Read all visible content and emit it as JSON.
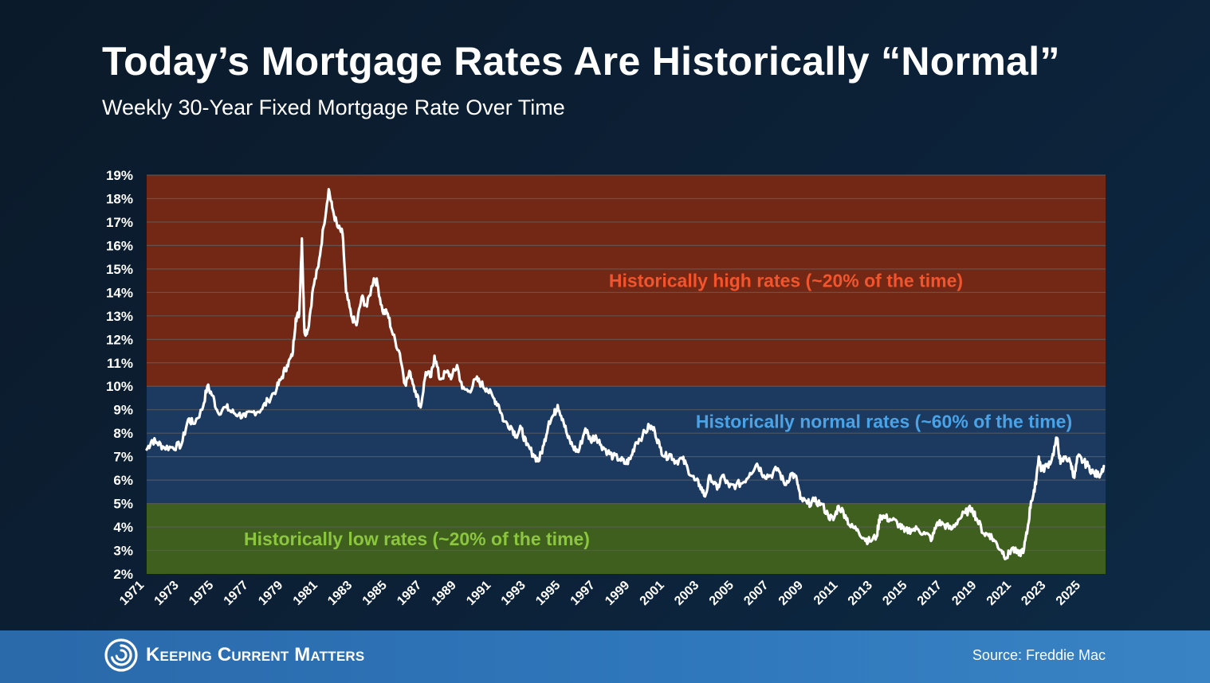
{
  "header": {
    "title": "Today’s Mortgage Rates Are Historically “Normal”",
    "subtitle": "Weekly 30-Year Fixed Mortgage Rate Over Time"
  },
  "footer": {
    "logo_text": "Keeping Current Matters",
    "logo_icon": "spiral-logo-icon",
    "source": "Source: Freddie Mac"
  },
  "chart_data": {
    "type": "line",
    "title": "Today’s Mortgage Rates Are Historically “Normal”",
    "subtitle": "Weekly 30-Year Fixed Mortgage Rate Over Time",
    "xlabel": "",
    "ylabel": "",
    "xlim": [
      1971.3,
      2026.6
    ],
    "ylim": [
      2,
      19
    ],
    "y_ticks": [
      "2%",
      "3%",
      "4%",
      "5%",
      "6%",
      "7%",
      "8%",
      "9%",
      "10%",
      "11%",
      "12%",
      "13%",
      "14%",
      "15%",
      "16%",
      "17%",
      "18%",
      "19%"
    ],
    "x_ticks": [
      "1971",
      "1973",
      "1975",
      "1977",
      "1979",
      "1981",
      "1983",
      "1985",
      "1987",
      "1989",
      "1991",
      "1993",
      "1995",
      "1997",
      "1999",
      "2001",
      "2003",
      "2005",
      "2007",
      "2009",
      "2011",
      "2013",
      "2015",
      "2017",
      "2019",
      "2021",
      "2023",
      "2025"
    ],
    "grid": true,
    "legend": "none",
    "bands": [
      {
        "label": "Historically high rates (~20% of the time)",
        "from": 10,
        "to": 19,
        "color": "#722814",
        "label_color": "#f2542d"
      },
      {
        "label": "Historically normal rates (~60% of the time)",
        "from": 5,
        "to": 10,
        "color": "#1c3a60",
        "label_color": "#4aa3e6"
      },
      {
        "label": "Historically low rates (~20% of the time)",
        "from": 2,
        "to": 5,
        "color": "#3e5f1e",
        "label_color": "#8cc63f"
      }
    ],
    "series": [
      {
        "line_color": "#ffffff",
        "points": [
          [
            1971.3,
            7.3
          ],
          [
            1971.6,
            7.7
          ],
          [
            1971.9,
            7.6
          ],
          [
            1972.3,
            7.4
          ],
          [
            1972.8,
            7.4
          ],
          [
            1973.3,
            7.5
          ],
          [
            1973.7,
            8.6
          ],
          [
            1974.0,
            8.4
          ],
          [
            1974.5,
            9.0
          ],
          [
            1974.8,
            10.0
          ],
          [
            1975.1,
            9.6
          ],
          [
            1975.4,
            8.9
          ],
          [
            1975.9,
            9.1
          ],
          [
            1976.2,
            8.9
          ],
          [
            1976.6,
            8.8
          ],
          [
            1977.0,
            8.7
          ],
          [
            1977.4,
            8.9
          ],
          [
            1977.9,
            9.0
          ],
          [
            1978.3,
            9.4
          ],
          [
            1978.8,
            9.9
          ],
          [
            1979.1,
            10.4
          ],
          [
            1979.4,
            10.9
          ],
          [
            1979.7,
            11.3
          ],
          [
            1979.9,
            12.9
          ],
          [
            1980.1,
            13.1
          ],
          [
            1980.25,
            16.3
          ],
          [
            1980.4,
            12.3
          ],
          [
            1980.6,
            12.4
          ],
          [
            1980.9,
            14.2
          ],
          [
            1981.2,
            15.1
          ],
          [
            1981.5,
            16.8
          ],
          [
            1981.8,
            18.4
          ],
          [
            1982.0,
            17.6
          ],
          [
            1982.3,
            16.8
          ],
          [
            1982.6,
            16.5
          ],
          [
            1982.8,
            14.0
          ],
          [
            1983.1,
            13.0
          ],
          [
            1983.4,
            12.6
          ],
          [
            1983.7,
            13.8
          ],
          [
            1984.0,
            13.4
          ],
          [
            1984.4,
            14.6
          ],
          [
            1984.6,
            14.4
          ],
          [
            1984.9,
            13.2
          ],
          [
            1985.2,
            13.1
          ],
          [
            1985.5,
            12.2
          ],
          [
            1985.9,
            11.4
          ],
          [
            1986.2,
            10.1
          ],
          [
            1986.5,
            10.6
          ],
          [
            1986.8,
            9.8
          ],
          [
            1987.1,
            9.1
          ],
          [
            1987.4,
            10.6
          ],
          [
            1987.7,
            10.4
          ],
          [
            1987.9,
            11.3
          ],
          [
            1988.2,
            10.3
          ],
          [
            1988.6,
            10.6
          ],
          [
            1988.9,
            10.4
          ],
          [
            1989.2,
            10.9
          ],
          [
            1989.5,
            9.9
          ],
          [
            1989.9,
            9.8
          ],
          [
            1990.3,
            10.3
          ],
          [
            1990.6,
            10.1
          ],
          [
            1990.9,
            9.9
          ],
          [
            1991.3,
            9.5
          ],
          [
            1991.6,
            9.2
          ],
          [
            1991.9,
            8.5
          ],
          [
            1992.3,
            8.3
          ],
          [
            1992.6,
            7.9
          ],
          [
            1992.9,
            8.2
          ],
          [
            1993.2,
            7.5
          ],
          [
            1993.6,
            7.1
          ],
          [
            1993.9,
            6.8
          ],
          [
            1994.2,
            7.5
          ],
          [
            1994.5,
            8.5
          ],
          [
            1994.8,
            8.8
          ],
          [
            1995.0,
            9.2
          ],
          [
            1995.3,
            8.6
          ],
          [
            1995.6,
            7.8
          ],
          [
            1995.9,
            7.4
          ],
          [
            1996.2,
            7.2
          ],
          [
            1996.6,
            8.2
          ],
          [
            1996.9,
            7.7
          ],
          [
            1997.2,
            7.9
          ],
          [
            1997.5,
            7.5
          ],
          [
            1997.9,
            7.2
          ],
          [
            1998.2,
            7.0
          ],
          [
            1998.6,
            6.9
          ],
          [
            1998.9,
            6.7
          ],
          [
            1999.2,
            6.9
          ],
          [
            1999.5,
            7.6
          ],
          [
            1999.9,
            7.9
          ],
          [
            2000.3,
            8.3
          ],
          [
            2000.6,
            8.1
          ],
          [
            2000.9,
            7.4
          ],
          [
            2001.2,
            7.0
          ],
          [
            2001.5,
            7.1
          ],
          [
            2001.8,
            6.8
          ],
          [
            2002.2,
            6.9
          ],
          [
            2002.5,
            6.5
          ],
          [
            2002.9,
            6.0
          ],
          [
            2003.2,
            5.8
          ],
          [
            2003.5,
            5.3
          ],
          [
            2003.8,
            6.2
          ],
          [
            2004.2,
            5.6
          ],
          [
            2004.5,
            6.2
          ],
          [
            2004.9,
            5.7
          ],
          [
            2005.3,
            5.8
          ],
          [
            2005.7,
            5.9
          ],
          [
            2006.1,
            6.3
          ],
          [
            2006.5,
            6.7
          ],
          [
            2006.9,
            6.2
          ],
          [
            2007.3,
            6.2
          ],
          [
            2007.7,
            6.5
          ],
          [
            2008.1,
            5.8
          ],
          [
            2008.5,
            6.3
          ],
          [
            2008.8,
            6.0
          ],
          [
            2009.0,
            5.2
          ],
          [
            2009.4,
            5.0
          ],
          [
            2009.8,
            5.1
          ],
          [
            2010.2,
            5.0
          ],
          [
            2010.6,
            4.5
          ],
          [
            2010.9,
            4.3
          ],
          [
            2011.2,
            4.9
          ],
          [
            2011.6,
            4.5
          ],
          [
            2011.9,
            4.0
          ],
          [
            2012.3,
            3.9
          ],
          [
            2012.7,
            3.5
          ],
          [
            2013.0,
            3.4
          ],
          [
            2013.4,
            3.6
          ],
          [
            2013.6,
            4.5
          ],
          [
            2013.9,
            4.4
          ],
          [
            2014.3,
            4.3
          ],
          [
            2014.7,
            4.1
          ],
          [
            2015.0,
            3.8
          ],
          [
            2015.4,
            3.9
          ],
          [
            2015.8,
            3.9
          ],
          [
            2016.2,
            3.7
          ],
          [
            2016.6,
            3.5
          ],
          [
            2016.9,
            4.2
          ],
          [
            2017.3,
            4.1
          ],
          [
            2017.7,
            3.9
          ],
          [
            2018.1,
            4.3
          ],
          [
            2018.5,
            4.6
          ],
          [
            2018.9,
            4.8
          ],
          [
            2019.2,
            4.3
          ],
          [
            2019.6,
            3.7
          ],
          [
            2019.9,
            3.7
          ],
          [
            2020.2,
            3.4
          ],
          [
            2020.6,
            3.0
          ],
          [
            2020.9,
            2.7
          ],
          [
            2021.2,
            3.1
          ],
          [
            2021.6,
            2.8
          ],
          [
            2021.9,
            3.1
          ],
          [
            2022.1,
            3.9
          ],
          [
            2022.3,
            5.1
          ],
          [
            2022.5,
            5.5
          ],
          [
            2022.75,
            7.0
          ],
          [
            2022.9,
            6.4
          ],
          [
            2023.2,
            6.6
          ],
          [
            2023.5,
            6.9
          ],
          [
            2023.8,
            7.8
          ],
          [
            2024.0,
            6.7
          ],
          [
            2024.3,
            7.0
          ],
          [
            2024.6,
            6.7
          ],
          [
            2024.8,
            6.1
          ],
          [
            2025.0,
            7.0
          ],
          [
            2025.3,
            6.8
          ],
          [
            2025.6,
            6.6
          ],
          [
            2025.9,
            6.3
          ],
          [
            2026.2,
            6.2
          ],
          [
            2026.5,
            6.6
          ]
        ]
      }
    ]
  }
}
